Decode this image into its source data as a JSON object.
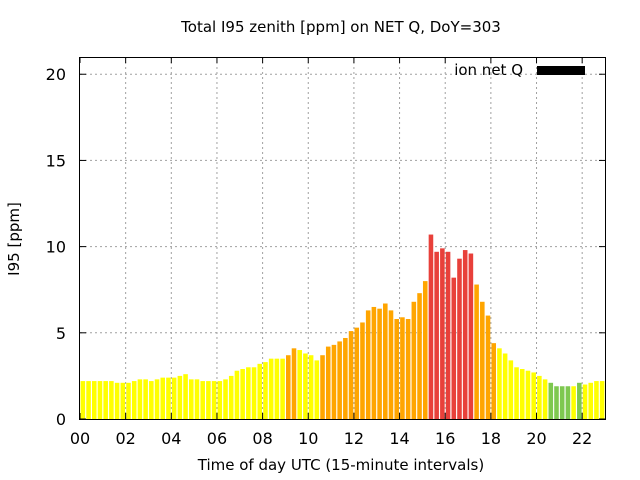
{
  "chart_data": {
    "type": "bar",
    "title": "Total I95 zenith [ppm] on NET Q, DoY=303",
    "xlabel": "Time of day UTC (15-minute intervals)",
    "ylabel": "I95 [ppm]",
    "xlim": [
      0,
      23
    ],
    "ylim": [
      0,
      21
    ],
    "x_tick_labels": [
      "00",
      "02",
      "04",
      "06",
      "08",
      "10",
      "12",
      "14",
      "16",
      "18",
      "20",
      "22"
    ],
    "x_tick_values": [
      0,
      2,
      4,
      6,
      8,
      10,
      12,
      14,
      16,
      18,
      20,
      22
    ],
    "y_tick_labels": [
      "0",
      "5",
      "10",
      "15",
      "20"
    ],
    "y_tick_values": [
      0,
      5,
      10,
      15,
      20
    ],
    "grid": true,
    "legend": {
      "label": "ion net Q",
      "placement": "top-right",
      "color": "#000000"
    },
    "bin_hours": 0.25,
    "colors": {
      "yellow": "#ffff00",
      "orange": "#ffa500",
      "red": "#e8403a",
      "green": "#7ec850"
    },
    "values": [
      2.2,
      2.2,
      2.2,
      2.2,
      2.2,
      2.2,
      2.1,
      2.1,
      2.1,
      2.2,
      2.3,
      2.3,
      2.2,
      2.3,
      2.4,
      2.4,
      2.4,
      2.5,
      2.6,
      2.3,
      2.3,
      2.2,
      2.2,
      2.2,
      2.2,
      2.3,
      2.5,
      2.8,
      2.9,
      3.0,
      3.0,
      3.2,
      3.3,
      3.5,
      3.5,
      3.5,
      3.7,
      4.1,
      4.0,
      3.8,
      3.7,
      3.4,
      3.7,
      4.2,
      4.3,
      4.5,
      4.7,
      5.1,
      5.3,
      5.6,
      6.3,
      6.5,
      6.4,
      6.7,
      6.3,
      5.8,
      5.9,
      5.8,
      6.8,
      7.3,
      8.0,
      10.7,
      9.7,
      9.9,
      9.7,
      8.2,
      9.3,
      9.8,
      9.6,
      7.8,
      6.8,
      6.0,
      4.4,
      4.1,
      3.8,
      3.4,
      3.0,
      2.9,
      2.8,
      2.7,
      2.5,
      2.3,
      2.1,
      1.9,
      1.9,
      1.9,
      1.9,
      2.1,
      2.0,
      2.1,
      2.2,
      2.2
    ],
    "bar_colors": [
      "yellow",
      "yellow",
      "yellow",
      "yellow",
      "yellow",
      "yellow",
      "yellow",
      "yellow",
      "yellow",
      "yellow",
      "yellow",
      "yellow",
      "yellow",
      "yellow",
      "yellow",
      "yellow",
      "yellow",
      "yellow",
      "yellow",
      "yellow",
      "yellow",
      "yellow",
      "yellow",
      "yellow",
      "yellow",
      "yellow",
      "yellow",
      "yellow",
      "yellow",
      "yellow",
      "yellow",
      "yellow",
      "yellow",
      "yellow",
      "yellow",
      "yellow",
      "orange",
      "orange",
      "yellow",
      "yellow",
      "yellow",
      "yellow",
      "orange",
      "orange",
      "orange",
      "orange",
      "orange",
      "orange",
      "orange",
      "orange",
      "orange",
      "orange",
      "orange",
      "orange",
      "orange",
      "orange",
      "orange",
      "orange",
      "orange",
      "orange",
      "orange",
      "red",
      "red",
      "red",
      "red",
      "red",
      "red",
      "red",
      "red",
      "orange",
      "orange",
      "orange",
      "orange",
      "yellow",
      "yellow",
      "yellow",
      "yellow",
      "yellow",
      "yellow",
      "yellow",
      "yellow",
      "yellow",
      "green",
      "green",
      "green",
      "green",
      "yellow",
      "green",
      "yellow",
      "yellow",
      "yellow",
      "yellow"
    ]
  }
}
